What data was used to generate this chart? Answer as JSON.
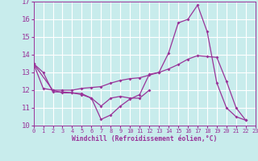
{
  "xlabel": "Windchill (Refroidissement éolien,°C)",
  "background_color": "#c8ecec",
  "line_color": "#993399",
  "grid_color": "#ffffff",
  "xlim": [
    0,
    23
  ],
  "ylim": [
    10,
    17
  ],
  "yticks": [
    10,
    11,
    12,
    13,
    14,
    15,
    16,
    17
  ],
  "xticks": [
    0,
    1,
    2,
    3,
    4,
    5,
    6,
    7,
    8,
    9,
    10,
    11,
    12,
    13,
    14,
    15,
    16,
    17,
    18,
    19,
    20,
    21,
    22,
    23
  ],
  "series": [
    {
      "x": [
        0,
        1,
        2,
        3,
        4,
        5,
        6,
        7,
        8,
        9,
        10,
        11,
        12,
        13,
        14,
        15,
        16,
        17,
        18,
        19,
        20,
        21,
        22
      ],
      "y": [
        13.5,
        13.0,
        11.9,
        11.9,
        11.85,
        11.8,
        11.55,
        10.35,
        10.6,
        11.1,
        11.5,
        11.75,
        12.9,
        13.0,
        14.1,
        15.8,
        16.0,
        16.8,
        15.3,
        12.4,
        11.0,
        10.5,
        10.3
      ]
    },
    {
      "x": [
        0,
        1,
        2,
        3,
        4,
        5,
        6,
        7,
        8,
        9,
        10,
        11,
        12,
        13,
        14,
        15,
        16,
        17,
        18,
        19,
        20,
        21,
        22
      ],
      "y": [
        13.5,
        12.1,
        12.0,
        12.0,
        12.0,
        12.1,
        12.15,
        12.2,
        12.4,
        12.55,
        12.65,
        12.7,
        12.85,
        13.0,
        13.2,
        13.45,
        13.75,
        13.95,
        13.9,
        13.85,
        12.5,
        11.0,
        10.3
      ]
    },
    {
      "x": [
        0,
        2,
        3,
        4,
        5,
        6,
        7,
        8,
        9,
        10,
        11,
        12
      ],
      "y": [
        13.5,
        12.0,
        11.85,
        11.85,
        11.75,
        11.55,
        11.1,
        11.55,
        11.65,
        11.55,
        11.55,
        12.0
      ]
    }
  ]
}
